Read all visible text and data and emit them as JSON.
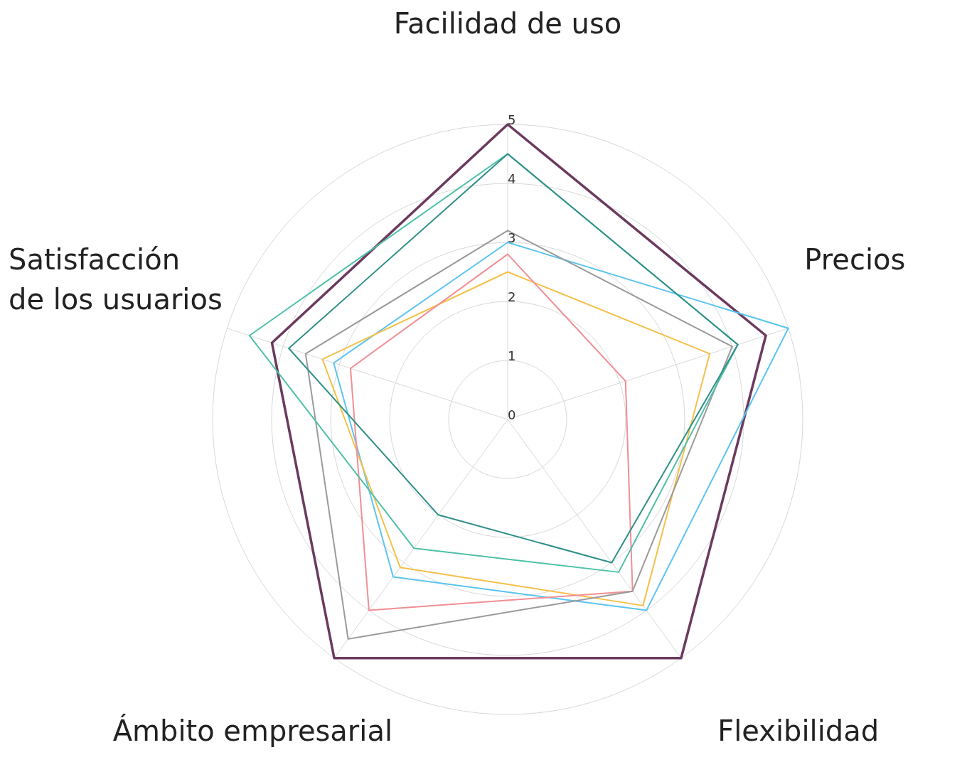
{
  "chart_data": {
    "type": "radar",
    "categories": [
      "Facilidad de uso",
      "Precios",
      "Flexibilidad",
      "Ámbito empresarial",
      "Satisfacción de los usuarios"
    ],
    "ylim": [
      0,
      5
    ],
    "yticks": [
      0,
      1,
      2,
      3,
      4,
      5
    ],
    "grid": true,
    "legend": false,
    "marker": "none",
    "series": [
      {
        "color": "#6b3a5e",
        "values": [
          5,
          4.6,
          5,
          5,
          4.2
        ]
      },
      {
        "color": "#5bc4f0",
        "values": [
          3,
          5,
          4,
          3.3,
          3.1
        ]
      },
      {
        "color": "#f5c04a",
        "values": [
          2.5,
          3.6,
          3.9,
          3.1,
          3.3
        ]
      },
      {
        "color": "#f08f95",
        "values": [
          2.8,
          2.1,
          3.6,
          4,
          2.8
        ]
      },
      {
        "color": "#9a9a9a",
        "values": [
          3.2,
          4,
          3.6,
          4.6,
          3.6
        ]
      },
      {
        "color": "#4fc0a8",
        "values": [
          4.5,
          4.1,
          3.2,
          2.7,
          4.6
        ]
      },
      {
        "color": "#2f8f88",
        "values": [
          4.5,
          4.1,
          3,
          2,
          3.9
        ]
      }
    ]
  }
}
